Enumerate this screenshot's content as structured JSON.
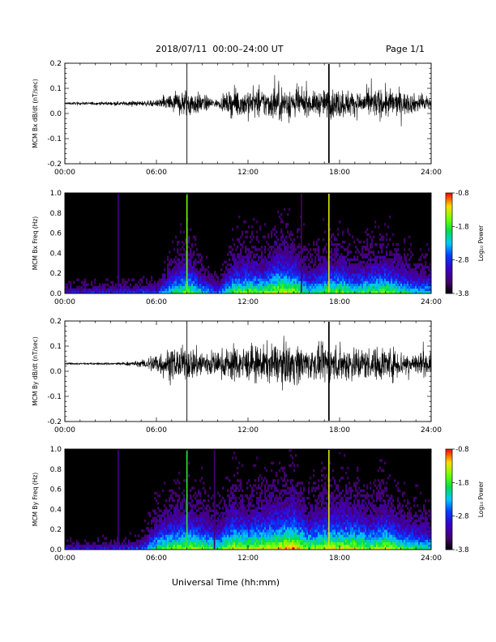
{
  "header": {
    "title": "2018/07/11  00:00–24:00 UT",
    "page": "Page 1/1"
  },
  "xaxis_title": "Universal Time (hh:mm)",
  "colorbar": {
    "label": "Log₁₀ Power",
    "ticks": [
      "-0.8",
      "-1.8",
      "-2.8",
      "-3.8"
    ],
    "range": [
      -3.8,
      -0.8
    ]
  },
  "chart_data": [
    {
      "type": "line",
      "ylabel": "MCM Bx dB/dt (nT/sec)",
      "xlim": [
        0,
        24
      ],
      "ylim": [
        -0.2,
        0.2
      ],
      "xticks": [
        "00:00",
        "06:00",
        "12:00",
        "18:00",
        "24:00"
      ],
      "yticks": [
        "-0.2",
        "-0.1",
        "0.0",
        "0.1",
        "0.2"
      ],
      "baseline": 0.04,
      "spikes_hours": [
        8.0,
        17.3
      ],
      "activity_profile": {
        "hours": [
          0,
          3.3,
          6,
          7,
          8,
          9,
          10,
          11,
          12,
          13,
          14,
          15,
          16,
          17,
          18,
          19,
          20,
          21,
          22,
          23,
          24
        ],
        "amplitude": [
          0.004,
          0.006,
          0.01,
          0.035,
          0.05,
          0.03,
          0.012,
          0.045,
          0.05,
          0.045,
          0.06,
          0.055,
          0.035,
          0.045,
          0.05,
          0.04,
          0.045,
          0.05,
          0.04,
          0.03,
          0.03
        ]
      }
    },
    {
      "type": "heatmap",
      "ylabel": "MCM Bx Freq (Hz)",
      "xlim": [
        0,
        24
      ],
      "ylim": [
        0.0,
        1.0
      ],
      "xticks": [
        "00:00",
        "06:00",
        "12:00",
        "18:00",
        "24:00"
      ],
      "yticks": [
        "0.0",
        "0.2",
        "0.4",
        "0.6",
        "0.8",
        "1.0"
      ],
      "zlim": [
        -3.8,
        -0.8
      ],
      "vertical_lines": [
        {
          "hour": 3.5,
          "value": -3.3
        },
        {
          "hour": 8.0,
          "value": -1.6
        },
        {
          "hour": 15.5,
          "value": -3.4
        },
        {
          "hour": 17.3,
          "value": -1.3
        }
      ],
      "activity_profile": {
        "hours": [
          0,
          3.3,
          6,
          7,
          8,
          9,
          10,
          11,
          12,
          13,
          14,
          15,
          16,
          17,
          18,
          19,
          20,
          21,
          22,
          23,
          24
        ],
        "amplitude": [
          0.004,
          0.006,
          0.01,
          0.035,
          0.05,
          0.03,
          0.012,
          0.045,
          0.05,
          0.045,
          0.06,
          0.055,
          0.035,
          0.045,
          0.05,
          0.04,
          0.045,
          0.05,
          0.04,
          0.03,
          0.03
        ]
      }
    },
    {
      "type": "line",
      "ylabel": "MCM By dB/dt (nT/sec)",
      "xlim": [
        0,
        24
      ],
      "ylim": [
        -0.2,
        0.2
      ],
      "xticks": [
        "00:00",
        "06:00",
        "12:00",
        "18:00",
        "24:00"
      ],
      "yticks": [
        "-0.2",
        "-0.1",
        "0.0",
        "0.1",
        "0.2"
      ],
      "baseline": 0.03,
      "spikes_hours": [
        8.0,
        17.3
      ],
      "activity_profile": {
        "hours": [
          0,
          3.3,
          5,
          6,
          7,
          8,
          9,
          10,
          11,
          12,
          13,
          14,
          15,
          16,
          17,
          18,
          19,
          20,
          21,
          22,
          23,
          24
        ],
        "amplitude": [
          0.003,
          0.004,
          0.01,
          0.04,
          0.05,
          0.055,
          0.05,
          0.04,
          0.06,
          0.055,
          0.06,
          0.065,
          0.07,
          0.05,
          0.06,
          0.06,
          0.06,
          0.05,
          0.06,
          0.045,
          0.04,
          0.035
        ]
      }
    },
    {
      "type": "heatmap",
      "ylabel": "MCM By Freq (Hz)",
      "xlim": [
        0,
        24
      ],
      "ylim": [
        0.0,
        1.0
      ],
      "xticks": [
        "00:00",
        "06:00",
        "12:00",
        "18:00",
        "24:00"
      ],
      "yticks": [
        "0.0",
        "0.2",
        "0.4",
        "0.6",
        "0.8",
        "1.0"
      ],
      "zlim": [
        -3.8,
        -0.8
      ],
      "vertical_lines": [
        {
          "hour": 3.5,
          "value": -3.3
        },
        {
          "hour": 8.0,
          "value": -1.8
        },
        {
          "hour": 9.8,
          "value": -3.4
        },
        {
          "hour": 17.3,
          "value": -1.3
        }
      ],
      "activity_profile": {
        "hours": [
          0,
          3.3,
          5,
          6,
          7,
          8,
          9,
          10,
          11,
          12,
          13,
          14,
          15,
          16,
          17,
          18,
          19,
          20,
          21,
          22,
          23,
          24
        ],
        "amplitude": [
          0.003,
          0.004,
          0.01,
          0.04,
          0.05,
          0.055,
          0.05,
          0.04,
          0.06,
          0.055,
          0.06,
          0.065,
          0.07,
          0.05,
          0.06,
          0.06,
          0.06,
          0.05,
          0.06,
          0.045,
          0.04,
          0.035
        ]
      }
    }
  ]
}
